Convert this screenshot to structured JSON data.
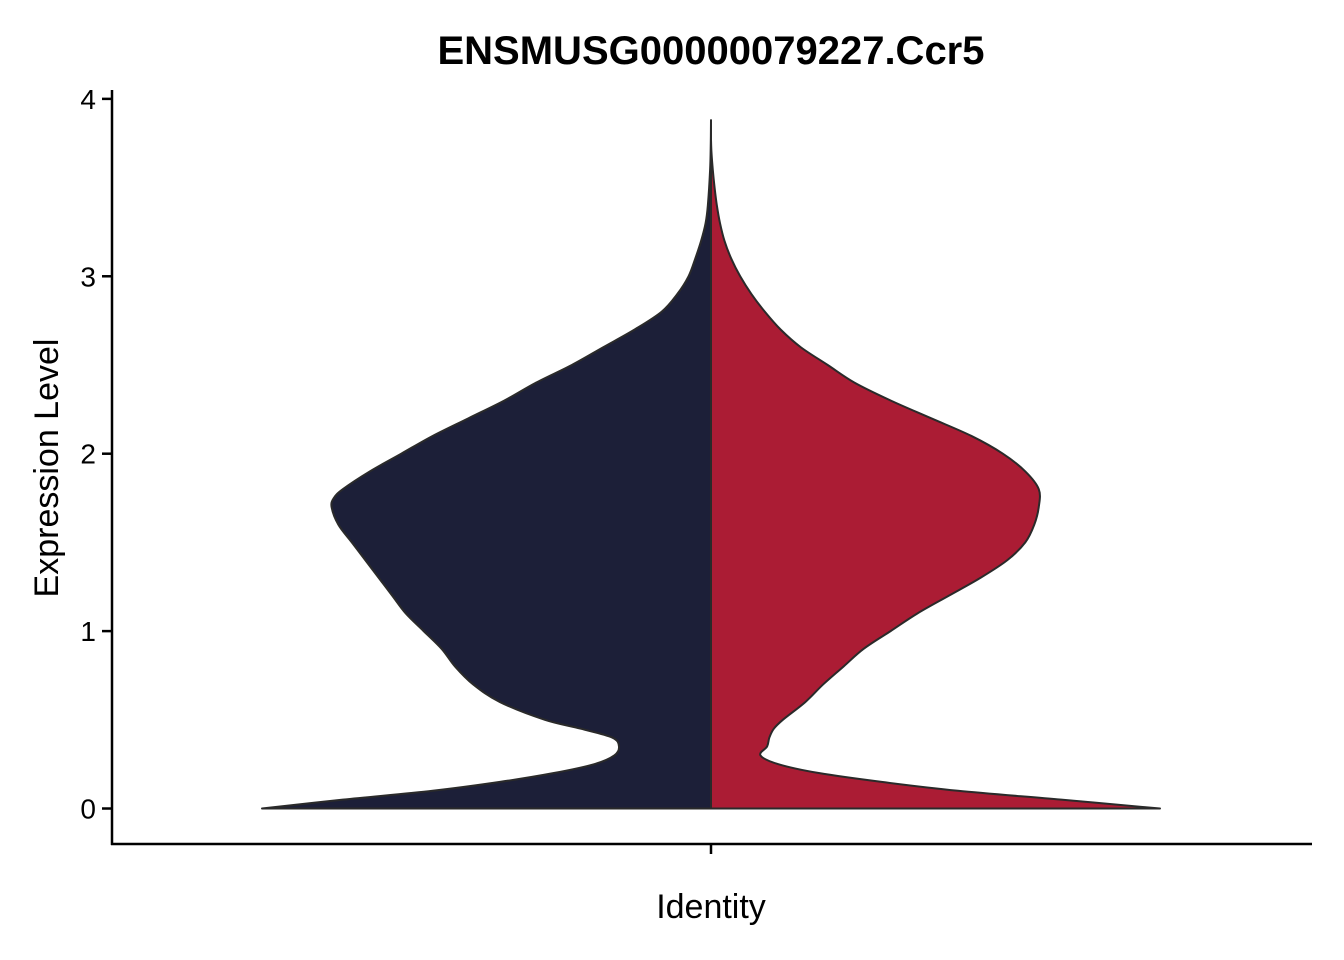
{
  "chart_data": {
    "type": "violin",
    "title": "ENSMUSG00000079227.Ccr5",
    "xlabel": "Identity",
    "ylabel": "Expression Level",
    "ylim": [
      -0.2,
      4.05
    ],
    "yticks": [
      0,
      1,
      2,
      3,
      4
    ],
    "grid": false,
    "legend": "none",
    "split": true,
    "groups": [
      {
        "side": "left",
        "color": "#1c1f38",
        "density": [
          [
            0.0,
            1.0
          ],
          [
            0.05,
            0.82
          ],
          [
            0.1,
            0.62
          ],
          [
            0.15,
            0.47
          ],
          [
            0.2,
            0.35
          ],
          [
            0.25,
            0.26
          ],
          [
            0.3,
            0.215
          ],
          [
            0.35,
            0.205
          ],
          [
            0.4,
            0.22
          ],
          [
            0.45,
            0.29
          ],
          [
            0.5,
            0.37
          ],
          [
            0.6,
            0.47
          ],
          [
            0.7,
            0.53
          ],
          [
            0.8,
            0.57
          ],
          [
            0.9,
            0.6
          ],
          [
            1.0,
            0.64
          ],
          [
            1.1,
            0.68
          ],
          [
            1.2,
            0.71
          ],
          [
            1.3,
            0.74
          ],
          [
            1.4,
            0.77
          ],
          [
            1.5,
            0.8
          ],
          [
            1.6,
            0.83
          ],
          [
            1.7,
            0.845
          ],
          [
            1.75,
            0.84
          ],
          [
            1.8,
            0.82
          ],
          [
            1.9,
            0.76
          ],
          [
            2.0,
            0.69
          ],
          [
            2.1,
            0.62
          ],
          [
            2.2,
            0.54
          ],
          [
            2.3,
            0.46
          ],
          [
            2.4,
            0.39
          ],
          [
            2.5,
            0.31
          ],
          [
            2.6,
            0.24
          ],
          [
            2.7,
            0.17
          ],
          [
            2.8,
            0.11
          ],
          [
            2.9,
            0.075
          ],
          [
            3.0,
            0.05
          ],
          [
            3.1,
            0.035
          ],
          [
            3.2,
            0.022
          ],
          [
            3.3,
            0.012
          ],
          [
            3.4,
            0.007
          ],
          [
            3.6,
            0.002
          ],
          [
            3.75,
            0.0005
          ],
          [
            3.88,
            0.0
          ]
        ]
      },
      {
        "side": "right",
        "color": "#ab1c34",
        "density": [
          [
            0.0,
            1.0
          ],
          [
            0.05,
            0.78
          ],
          [
            0.1,
            0.55
          ],
          [
            0.15,
            0.38
          ],
          [
            0.2,
            0.24
          ],
          [
            0.25,
            0.15
          ],
          [
            0.3,
            0.11
          ],
          [
            0.35,
            0.125
          ],
          [
            0.4,
            0.13
          ],
          [
            0.45,
            0.14
          ],
          [
            0.5,
            0.16
          ],
          [
            0.6,
            0.21
          ],
          [
            0.7,
            0.25
          ],
          [
            0.8,
            0.295
          ],
          [
            0.9,
            0.34
          ],
          [
            1.0,
            0.4
          ],
          [
            1.1,
            0.46
          ],
          [
            1.2,
            0.53
          ],
          [
            1.3,
            0.6
          ],
          [
            1.4,
            0.66
          ],
          [
            1.5,
            0.7
          ],
          [
            1.6,
            0.72
          ],
          [
            1.7,
            0.73
          ],
          [
            1.8,
            0.73
          ],
          [
            1.9,
            0.7
          ],
          [
            2.0,
            0.65
          ],
          [
            2.1,
            0.58
          ],
          [
            2.2,
            0.49
          ],
          [
            2.3,
            0.4
          ],
          [
            2.4,
            0.32
          ],
          [
            2.5,
            0.26
          ],
          [
            2.6,
            0.2
          ],
          [
            2.7,
            0.155
          ],
          [
            2.8,
            0.12
          ],
          [
            2.9,
            0.09
          ],
          [
            3.0,
            0.065
          ],
          [
            3.1,
            0.045
          ],
          [
            3.2,
            0.03
          ],
          [
            3.3,
            0.02
          ],
          [
            3.4,
            0.013
          ],
          [
            3.5,
            0.008
          ],
          [
            3.6,
            0.004
          ],
          [
            3.7,
            0.001
          ],
          [
            3.77,
            0.0
          ]
        ]
      }
    ]
  }
}
